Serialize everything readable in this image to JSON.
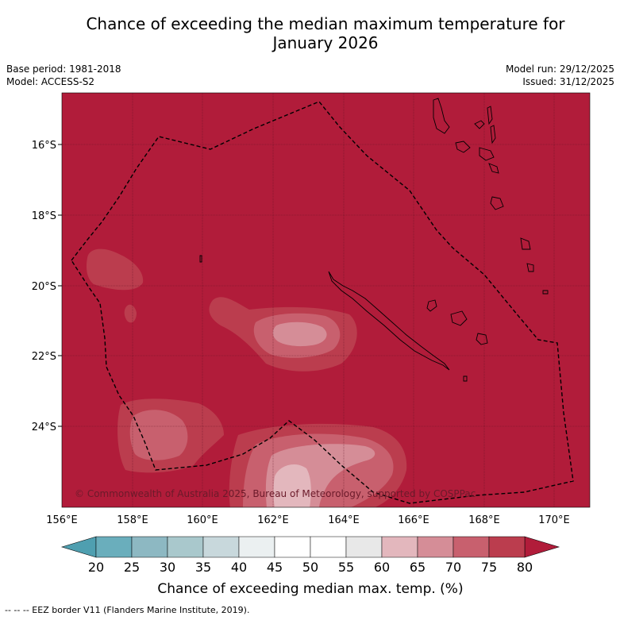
{
  "title": {
    "line1": "Chance of exceeding the median maximum temperature for",
    "line2": "January 2026"
  },
  "meta": {
    "base_period": "Base period: 1981-2018",
    "model": "Model: ACCESS-S2",
    "model_run": "Model run: 29/12/2025",
    "issued": "Issued: 31/12/2025"
  },
  "map": {
    "background_color": "#b11c3a",
    "lat_labels": [
      "16°S",
      "18°S",
      "20°S",
      "22°S",
      "24°S"
    ],
    "lon_labels": [
      "156°E",
      "158°E",
      "160°E",
      "162°E",
      "164°E",
      "166°E",
      "168°E",
      "170°E"
    ],
    "copyright": "© Commonwealth of Australia 2025, Bureau of Meteorology, supported by COSPPac"
  },
  "colorbar": {
    "colors": [
      "#6aaebc",
      "#8db8c2",
      "#a9c8cc",
      "#c8d8dc",
      "#ebf0f1",
      "#ffffff",
      "#ffffff",
      "#e8e8e8",
      "#e3b7bd",
      "#d58d97",
      "#c8606e",
      "#bb3d4e"
    ],
    "under_color": "#4f9fb0",
    "over_color": "#b11c3a",
    "tick_labels": [
      "20",
      "25",
      "30",
      "35",
      "40",
      "45",
      "50",
      "55",
      "60",
      "65",
      "70",
      "75",
      "80"
    ],
    "title": "Chance of exceeding median max. temp. (%)"
  },
  "footnote": "--  --  -- EEZ border V11 (Flanders Marine Institute, 2019)."
}
